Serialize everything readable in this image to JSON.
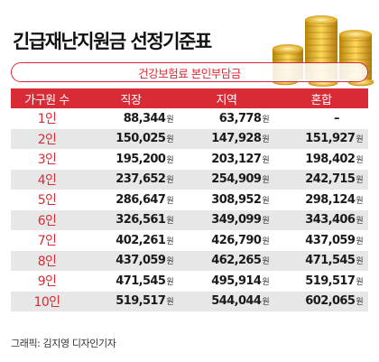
{
  "title": "긴급재난지원금 선정기준표",
  "subtitle": "건강보험료 본인부담금",
  "table": {
    "headers": [
      "가구원 수",
      "직장",
      "지역",
      "혼합"
    ],
    "unit": "원",
    "rows": [
      {
        "size": "1인",
        "job": "88,344",
        "region": "63,778",
        "mixed": "–"
      },
      {
        "size": "2인",
        "job": "150,025",
        "region": "147,928",
        "mixed": "151,927"
      },
      {
        "size": "3인",
        "job": "195,200",
        "region": "203,127",
        "mixed": "198,402"
      },
      {
        "size": "4인",
        "job": "237,652",
        "region": "254,909",
        "mixed": "242,715"
      },
      {
        "size": "5인",
        "job": "286,647",
        "region": "308,952",
        "mixed": "298,124"
      },
      {
        "size": "6인",
        "job": "326,561",
        "region": "349,099",
        "mixed": "343,406"
      },
      {
        "size": "7인",
        "job": "402,261",
        "region": "426,790",
        "mixed": "437,059"
      },
      {
        "size": "8인",
        "job": "437,059",
        "region": "462,265",
        "mixed": "471,545"
      },
      {
        "size": "9인",
        "job": "471,545",
        "region": "495,914",
        "mixed": "519,517"
      },
      {
        "size": "10인",
        "job": "519,517",
        "region": "544,044",
        "mixed": "602,065"
      }
    ]
  },
  "credit": "그래픽: 김지영 디자인기자",
  "colors": {
    "accent": "#d92b35",
    "shade": "#e7e7e7",
    "gold": "#e8b021"
  }
}
